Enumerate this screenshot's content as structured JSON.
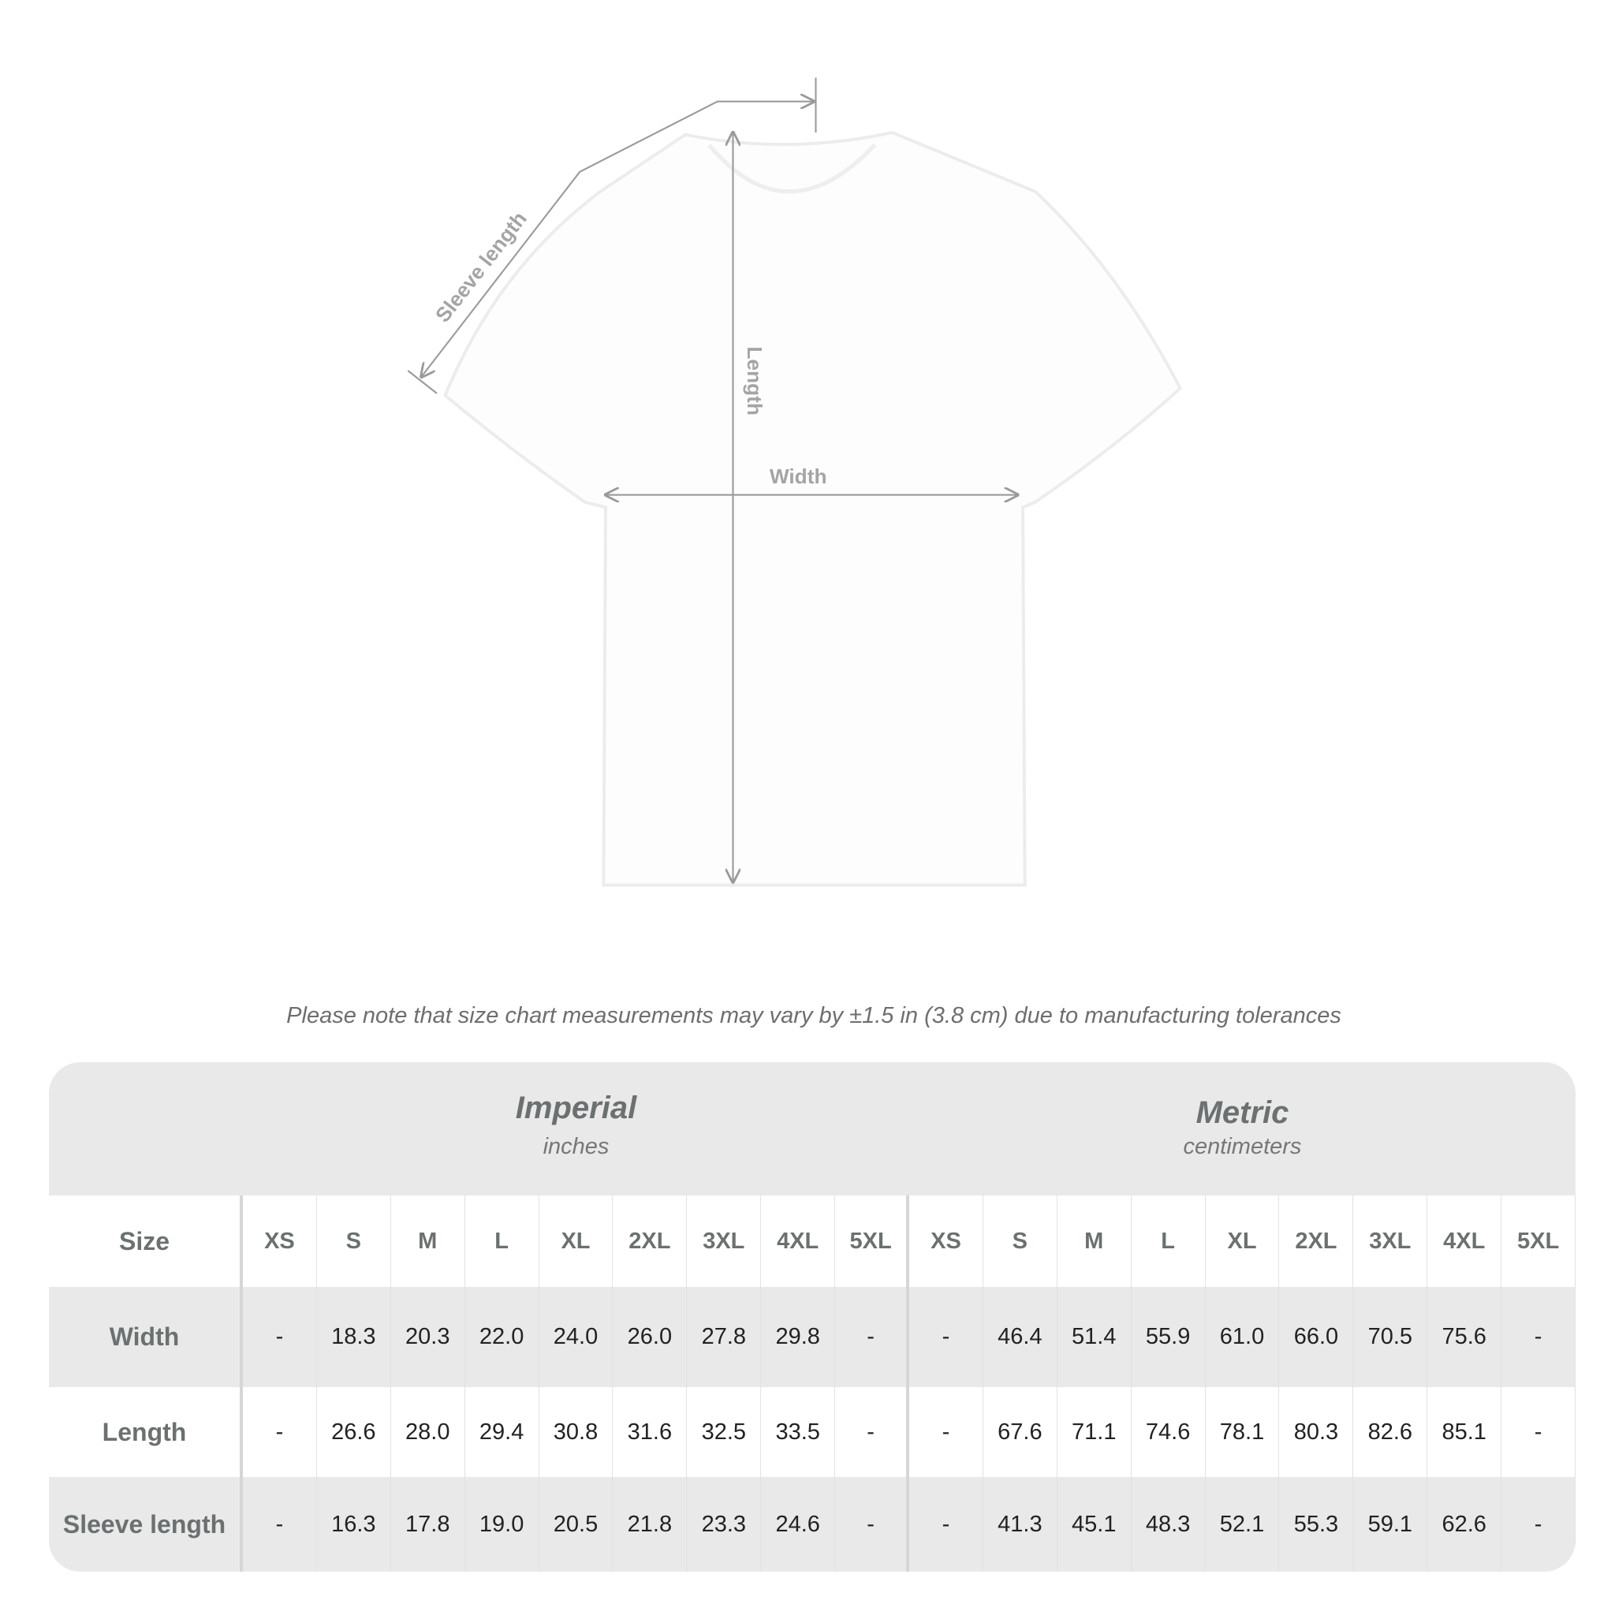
{
  "diagram": {
    "labels": {
      "sleeve": "Sleeve length",
      "length": "Length",
      "width": "Width"
    },
    "line_color": "#9a9a9a"
  },
  "note": "Please note that size chart measurements may vary by ±1.5 in (3.8 cm) due to manufacturing tolerances",
  "table": {
    "imperial": {
      "title": "Imperial",
      "unit": "inches"
    },
    "metric": {
      "title": "Metric",
      "unit": "centimeters"
    },
    "size_label": "Size",
    "sizes": [
      "XS",
      "S",
      "M",
      "L",
      "XL",
      "2XL",
      "3XL",
      "4XL",
      "5XL"
    ],
    "rows": [
      {
        "label": "Width",
        "imperial": [
          "-",
          "18.3",
          "20.3",
          "22.0",
          "24.0",
          "26.0",
          "27.8",
          "29.8",
          "-"
        ],
        "metric": [
          "-",
          "46.4",
          "51.4",
          "55.9",
          "61.0",
          "66.0",
          "70.5",
          "75.6",
          "-"
        ]
      },
      {
        "label": "Length",
        "imperial": [
          "-",
          "26.6",
          "28.0",
          "29.4",
          "30.8",
          "31.6",
          "32.5",
          "33.5",
          "-"
        ],
        "metric": [
          "-",
          "67.6",
          "71.1",
          "74.6",
          "78.1",
          "80.3",
          "82.6",
          "85.1",
          "-"
        ]
      },
      {
        "label": "Sleeve length",
        "imperial": [
          "-",
          "16.3",
          "17.8",
          "19.0",
          "20.5",
          "21.8",
          "23.3",
          "24.6",
          "-"
        ],
        "metric": [
          "-",
          "41.3",
          "45.1",
          "48.3",
          "52.1",
          "55.3",
          "59.1",
          "62.6",
          "-"
        ]
      }
    ],
    "header_bg": "#e9e9e9",
    "header_text_color": "#6b7070"
  }
}
